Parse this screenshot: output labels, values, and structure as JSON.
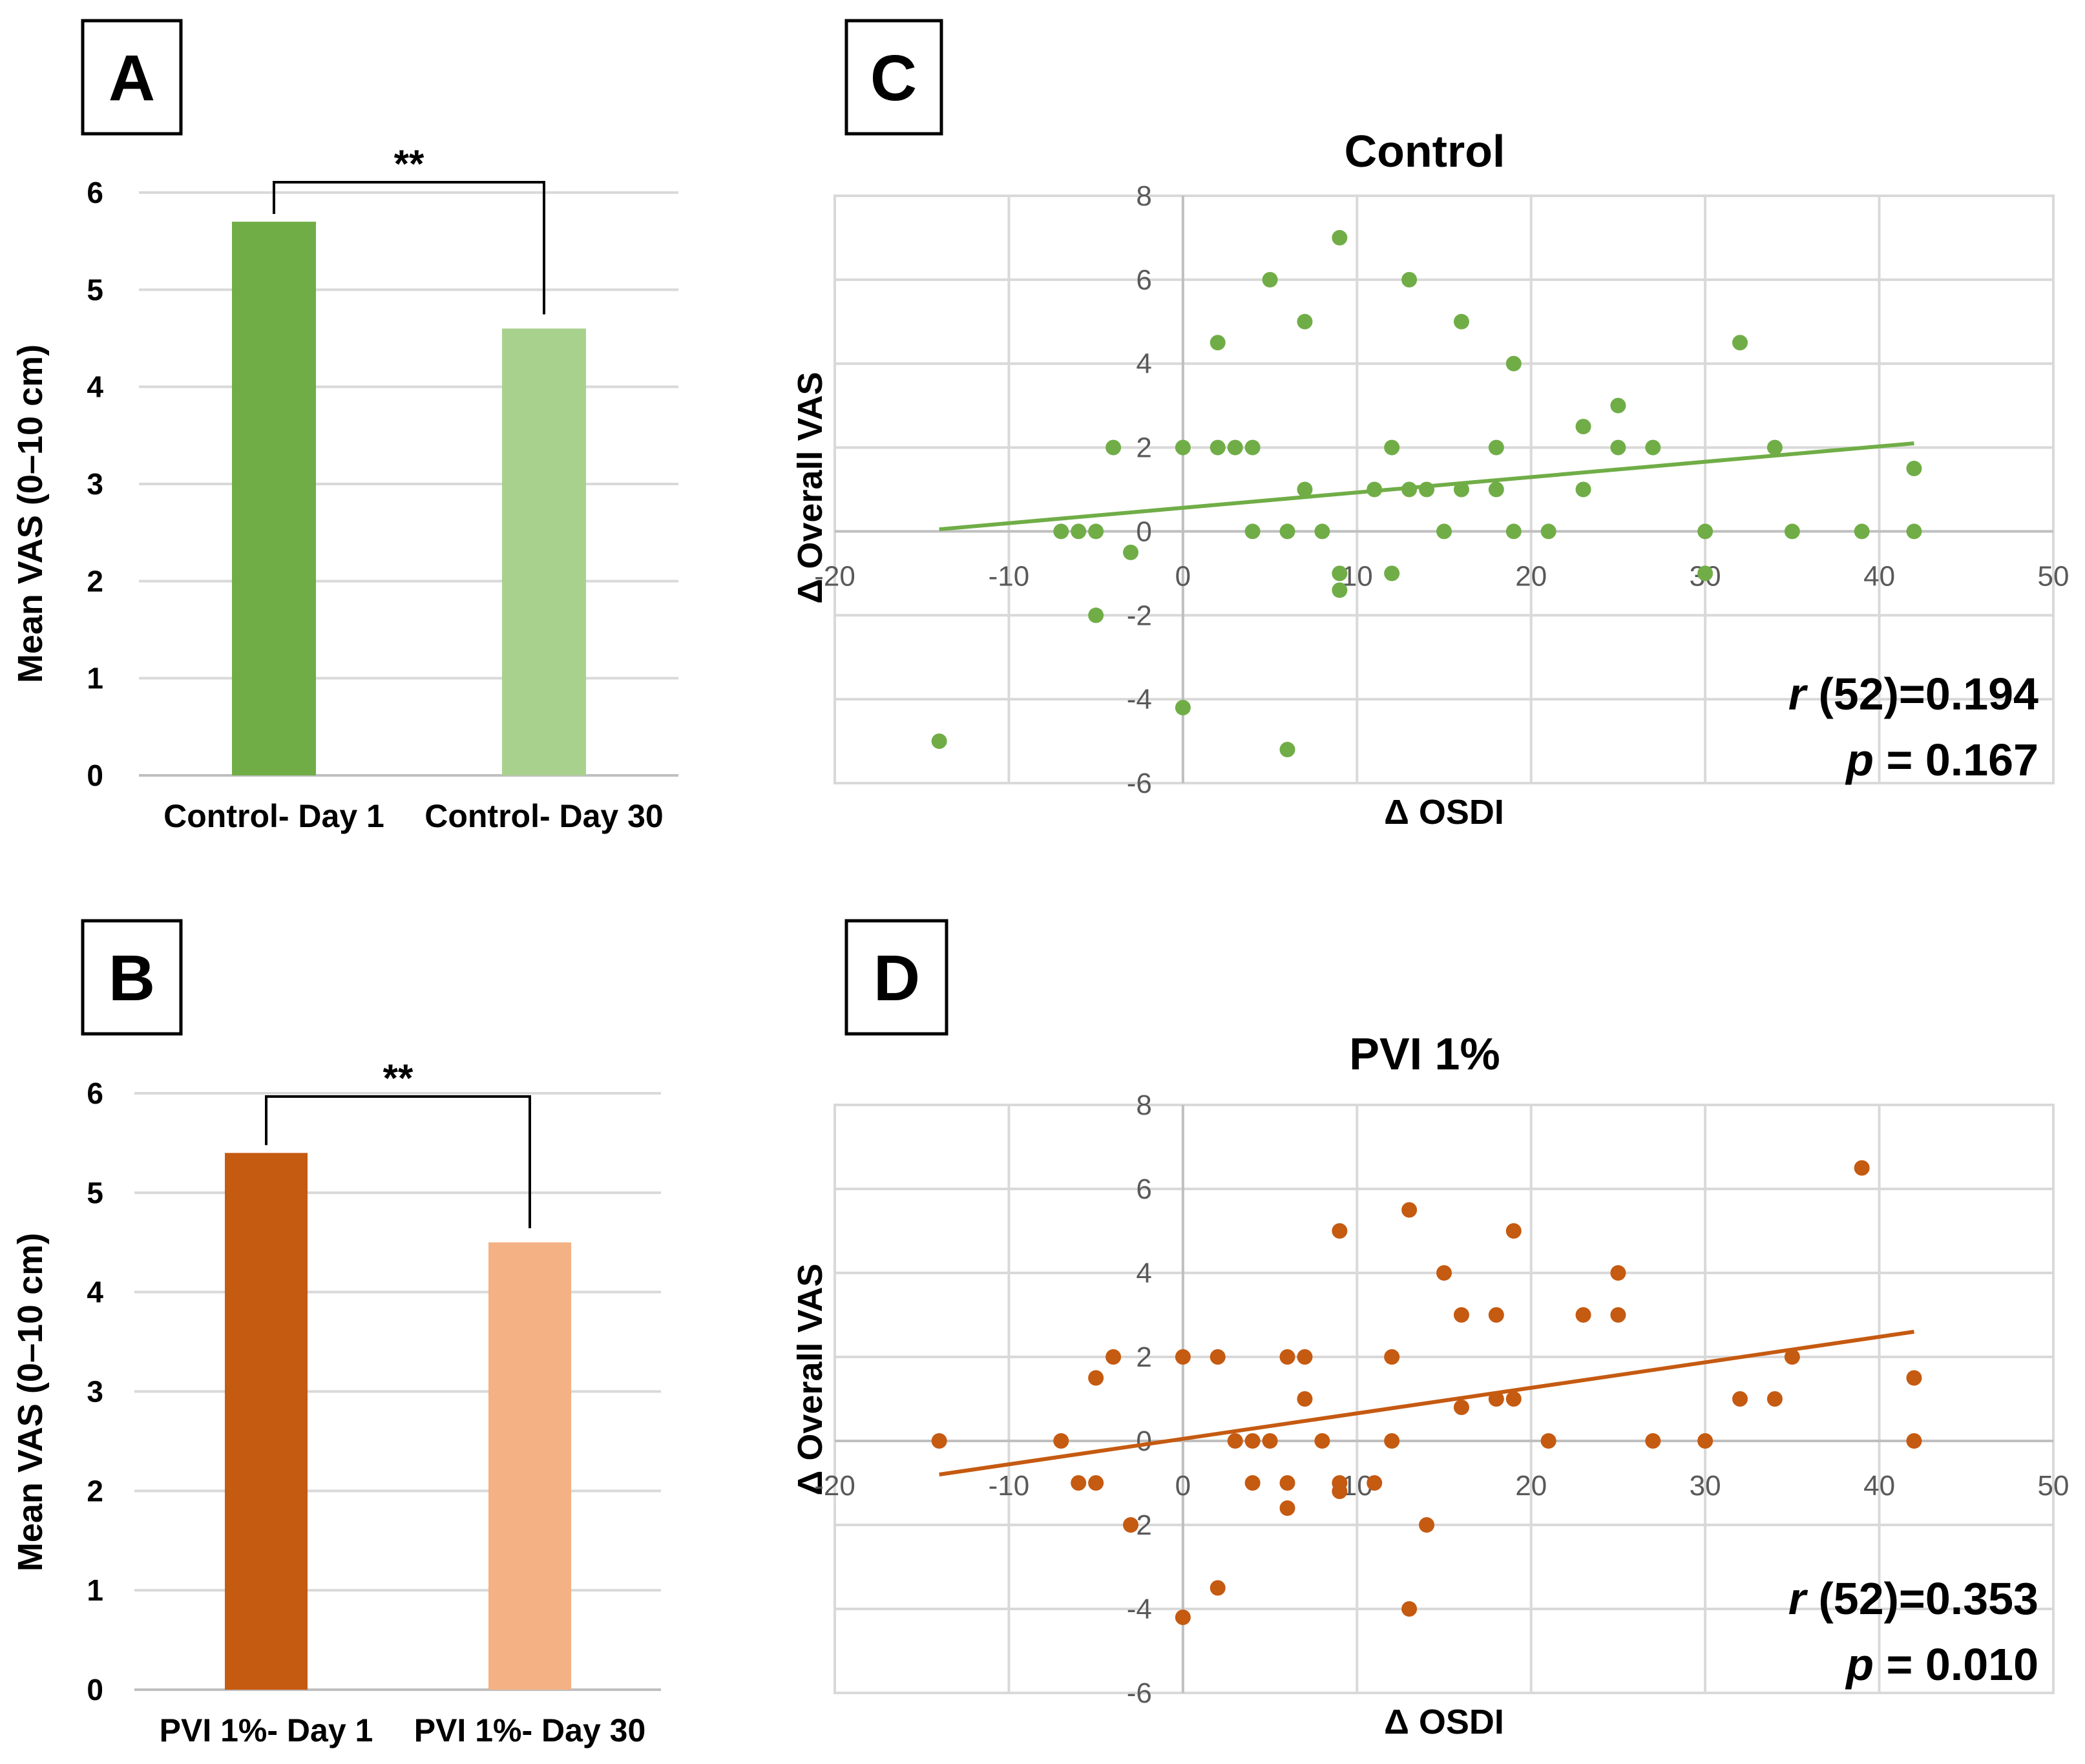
{
  "panels": [
    {
      "letter": "A",
      "chart_data": {
        "type": "bar",
        "categories": [
          "Control- Day 1",
          "Control- Day 30"
        ],
        "values": [
          5.7,
          4.6
        ],
        "colors": [
          "#70ad47",
          "#a9d18e"
        ],
        "title": "",
        "xlabel": "",
        "ylabel": "Mean VAS (0–10 cm)",
        "ylim": [
          0,
          6
        ],
        "yticks": [
          "0",
          "1",
          "2",
          "3",
          "4",
          "5",
          "6"
        ],
        "grid": true,
        "significance": "**"
      }
    },
    {
      "letter": "B",
      "chart_data": {
        "type": "bar",
        "categories": [
          "PVI 1%- Day 1",
          "PVI 1%- Day 30"
        ],
        "values": [
          5.4,
          4.5
        ],
        "colors": [
          "#c55a11",
          "#f4b183"
        ],
        "title": "",
        "xlabel": "",
        "ylabel": "Mean VAS (0–10 cm)",
        "ylim": [
          0,
          6
        ],
        "yticks": [
          "0",
          "1",
          "2",
          "3",
          "4",
          "5",
          "6"
        ],
        "grid": true,
        "significance": "**"
      }
    },
    {
      "letter": "C",
      "chart_data": {
        "type": "scatter",
        "title": "Control",
        "xlabel": "Δ OSDI",
        "ylabel": "Δ Overall VAS",
        "xlim": [
          -20,
          50
        ],
        "ylim": [
          -6,
          8
        ],
        "xticks": [
          "-20",
          "-10",
          "0",
          "10",
          "20",
          "30",
          "40",
          "50"
        ],
        "yticks": [
          "-6",
          "-4",
          "-2",
          "0",
          "2",
          "4",
          "6",
          "8"
        ],
        "color": "#70ad47",
        "trendline": {
          "x": [
            -14,
            42
          ],
          "y": [
            0.05,
            2.1
          ]
        },
        "stat_r": "(52)=0.194",
        "stat_p": "= 0.167",
        "points": [
          [
            -14,
            -5
          ],
          [
            -7,
            0
          ],
          [
            -6,
            0
          ],
          [
            -5,
            0
          ],
          [
            -5,
            -2
          ],
          [
            -4,
            2
          ],
          [
            -3,
            -0.5
          ],
          [
            0,
            2
          ],
          [
            0,
            -4.2
          ],
          [
            2,
            2
          ],
          [
            2,
            4.5
          ],
          [
            3,
            2
          ],
          [
            4,
            2
          ],
          [
            4,
            0
          ],
          [
            5,
            6
          ],
          [
            6,
            0
          ],
          [
            6,
            -5.2
          ],
          [
            7,
            5
          ],
          [
            7,
            1
          ],
          [
            8,
            0
          ],
          [
            9,
            7
          ],
          [
            9,
            -1
          ],
          [
            9,
            -1.4
          ],
          [
            12,
            2
          ],
          [
            12,
            -1
          ],
          [
            11,
            1
          ],
          [
            13,
            6
          ],
          [
            13,
            1
          ],
          [
            14,
            1
          ],
          [
            15,
            0
          ],
          [
            16,
            5
          ],
          [
            16,
            1
          ],
          [
            18,
            2
          ],
          [
            18,
            1
          ],
          [
            19,
            4
          ],
          [
            19,
            0
          ],
          [
            21,
            0
          ],
          [
            23,
            2.5
          ],
          [
            23,
            1
          ],
          [
            25,
            3
          ],
          [
            25,
            2
          ],
          [
            27,
            2
          ],
          [
            30,
            0
          ],
          [
            30,
            -1
          ],
          [
            32,
            4.5
          ],
          [
            34,
            2
          ],
          [
            35,
            0
          ],
          [
            39,
            0
          ],
          [
            42,
            1.5
          ],
          [
            42,
            0
          ]
        ]
      }
    },
    {
      "letter": "D",
      "chart_data": {
        "type": "scatter",
        "title": "PVI 1%",
        "xlabel": "Δ OSDI",
        "ylabel": "Δ Overall VAS",
        "xlim": [
          -20,
          50
        ],
        "ylim": [
          -6,
          8
        ],
        "xticks": [
          "-20",
          "-10",
          "0",
          "10",
          "20",
          "30",
          "40",
          "50"
        ],
        "yticks": [
          "-6",
          "-4",
          "-2",
          "0",
          "2",
          "4",
          "6",
          "8"
        ],
        "color": "#c55a11",
        "trendline": {
          "x": [
            -14,
            42
          ],
          "y": [
            -0.8,
            2.6
          ]
        },
        "stat_r": "(52)=0.353",
        "stat_p": "= 0.010",
        "points": [
          [
            -14,
            0
          ],
          [
            -7,
            0
          ],
          [
            -6,
            -1
          ],
          [
            -5,
            -1
          ],
          [
            -5,
            1.5
          ],
          [
            -4,
            2
          ],
          [
            -3,
            -2
          ],
          [
            0,
            2
          ],
          [
            0,
            -4.2
          ],
          [
            2,
            2
          ],
          [
            2,
            -3.5
          ],
          [
            3,
            0
          ],
          [
            4,
            0
          ],
          [
            4,
            -1
          ],
          [
            5,
            0
          ],
          [
            6,
            2
          ],
          [
            6,
            -1
          ],
          [
            6,
            -1.6
          ],
          [
            7,
            2
          ],
          [
            7,
            1
          ],
          [
            8,
            0
          ],
          [
            9,
            5
          ],
          [
            9,
            -1
          ],
          [
            9,
            -1.2
          ],
          [
            11,
            -1
          ],
          [
            12,
            2
          ],
          [
            12,
            0
          ],
          [
            13,
            5.5
          ],
          [
            13,
            -4
          ],
          [
            14,
            -2
          ],
          [
            15,
            4
          ],
          [
            16,
            3
          ],
          [
            16,
            0.8
          ],
          [
            18,
            3
          ],
          [
            18,
            1
          ],
          [
            19,
            5
          ],
          [
            19,
            1
          ],
          [
            21,
            0
          ],
          [
            23,
            3
          ],
          [
            25,
            4
          ],
          [
            25,
            3
          ],
          [
            27,
            0
          ],
          [
            30,
            0
          ],
          [
            32,
            1
          ],
          [
            34,
            1
          ],
          [
            35,
            2
          ],
          [
            39,
            6.5
          ],
          [
            42,
            1.5
          ],
          [
            42,
            0
          ]
        ]
      }
    }
  ]
}
